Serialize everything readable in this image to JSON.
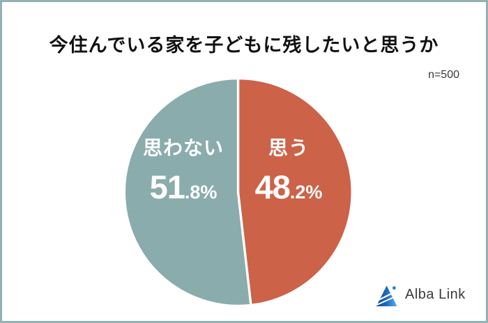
{
  "frame": {
    "border_color": "#96b1b1",
    "background_color": "#ffffff"
  },
  "title": "今住んでいる家を子どもに残したいと思うか",
  "sample_size_label": "n=500",
  "chart_data": {
    "type": "pie",
    "title": "今住んでいる家を子どもに残したいと思うか",
    "annotation": "n=500",
    "start_angle_deg": 0,
    "direction": "clockwise",
    "divider_color": "#ffffff",
    "label_color": "#ffffff",
    "segments": [
      {
        "label": "思う",
        "value": 48.2,
        "display_big": "48",
        "display_small": ".2%",
        "color": "#cc6248"
      },
      {
        "label": "思わない",
        "value": 51.8,
        "display_big": "51",
        "display_small": ".8%",
        "color": "#8aacac"
      }
    ]
  },
  "logo": {
    "text": "Alba Link",
    "icon": "alba-link-triangle-logo",
    "icon_colors": {
      "dark_blue": "#16418f",
      "mid_blue": "#1e6cc0",
      "light_blue": "#5bb0e8",
      "dot_blue": "#2e86d6"
    }
  }
}
